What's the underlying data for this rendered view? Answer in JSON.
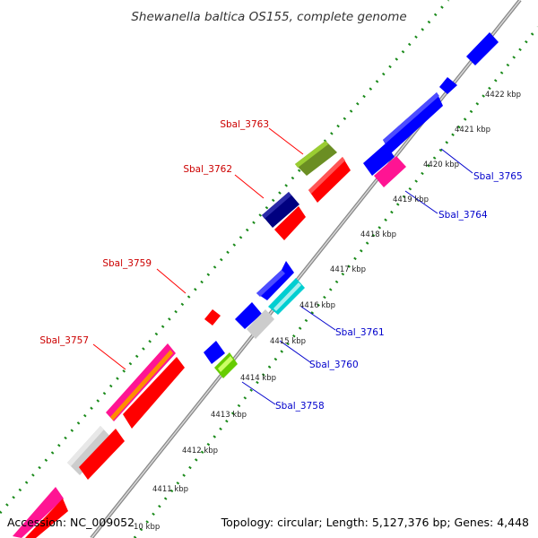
{
  "title": "Shewanella baltica OS155, complete genome",
  "footer": {
    "accession": "Accession: NC_009052",
    "summary": "Topology: circular; Length: 5,127,376 bp; Genes: 4,448"
  },
  "scale_labels": [
    "4422 kbp",
    "4421 kbp",
    "4420 kbp",
    "4419 kbp",
    "4418 kbp",
    "4417 kbp",
    "4416 kbp",
    "4415 kbp",
    "4414 kbp",
    "4413 kbp",
    "4412 kbp",
    "4411 kbp",
    "10 kbp"
  ],
  "gene_labels": [
    "Sbal_3763",
    "Sbal_3762",
    "Sbal_3759",
    "Sbal_3757",
    "Sbal_3765",
    "Sbal_3764",
    "Sbal_3761",
    "Sbal_3760",
    "Sbal_3758"
  ],
  "colors": {
    "backbone": "#999999",
    "ticks": "#1a8a1a",
    "red": "#ff0000",
    "blue": "#0000ff",
    "navy": "#000080",
    "olive": "#6b8e23",
    "magenta": "#ff1493",
    "gray": "#cccccc",
    "cyan": "#00ced1",
    "lime": "#66cc00",
    "orange": "#ff8c00",
    "label_red": "#cc0000",
    "label_blue": "#0000cc"
  }
}
